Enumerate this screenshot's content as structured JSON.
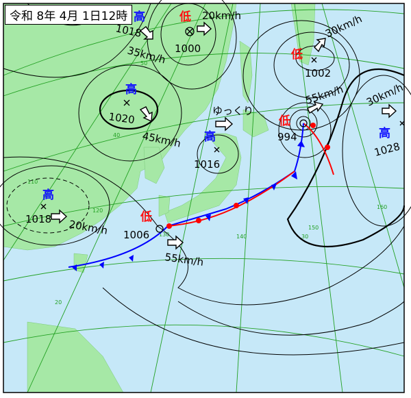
{
  "title": "令和 8年 4月 1日12時",
  "colors": {
    "sea": "#c6e8f8",
    "land": "#a6e8a6",
    "high": "#1010ff",
    "low": "#ff1010",
    "grid": "#22a022",
    "warm_front": "#ff0000",
    "cold_front": "#0000ff"
  },
  "systems": [
    {
      "type_label": "高",
      "pressure": "1018",
      "speed": "35km/h"
    },
    {
      "type_label": "低",
      "pressure": "1000",
      "speed": "20km/h"
    },
    {
      "type_label": "高",
      "pressure": "1020",
      "speed": "45km/h"
    },
    {
      "type_label": "低",
      "pressure": "1002",
      "speed": "30km/h"
    },
    {
      "type_label": "低",
      "pressure": "994",
      "speed": "55km/h"
    },
    {
      "type_label": "高",
      "pressure": "1028",
      "speed": "30km/h"
    },
    {
      "type_label": "高",
      "pressure": "1016",
      "speed": "ゆっくり"
    },
    {
      "type_label": "高",
      "pressure": "1018",
      "speed": "20km/h"
    },
    {
      "type_label": "低",
      "pressure": "1006",
      "speed": "55km/h"
    }
  ],
  "grid_labels": {
    "lat": [
      "50",
      "40",
      "30",
      "20"
    ],
    "lon": [
      "110",
      "120",
      "130",
      "140",
      "150",
      "160"
    ]
  }
}
